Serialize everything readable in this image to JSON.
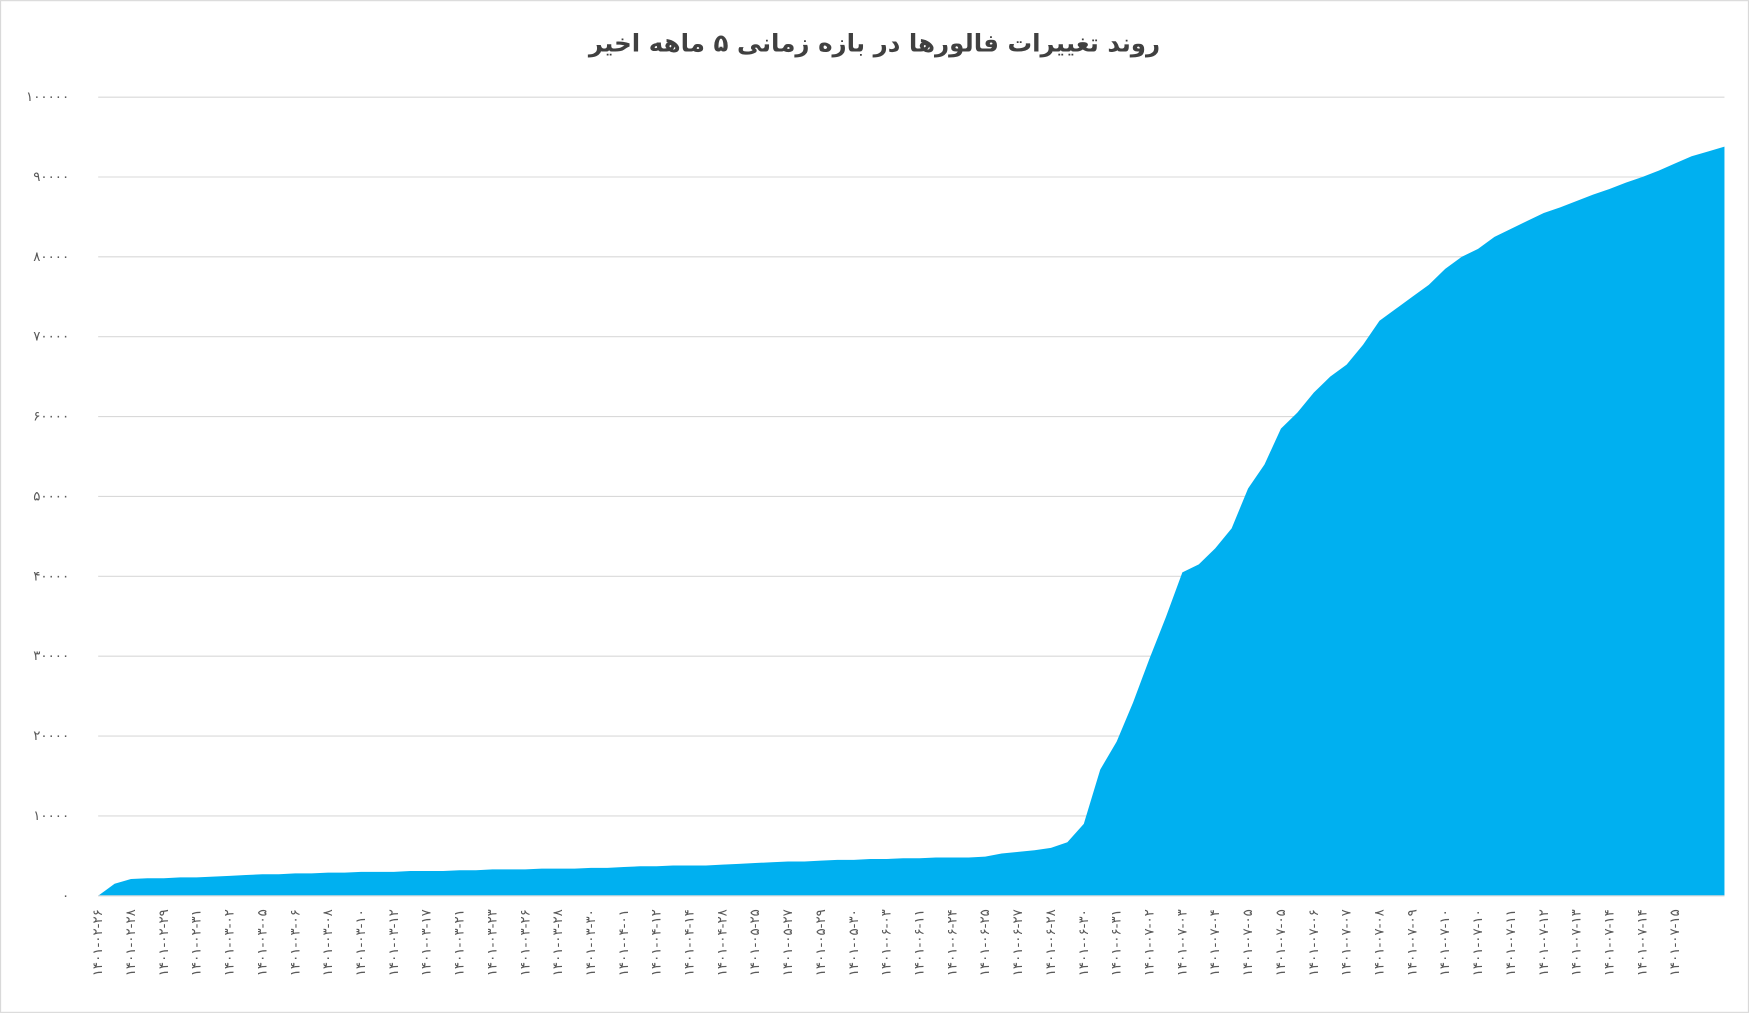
{
  "chart_data": {
    "type": "area",
    "title": "روند تغییرات فالورها در بازه زمانی ۵ ماهه اخیر",
    "categories": [
      "۱۴۰۱-۰۲-۲۶",
      null,
      "۱۴۰۱-۰۲-۲۸",
      null,
      "۱۴۰۱-۰۲-۲۹",
      null,
      "۱۴۰۱-۰۲-۳۱",
      null,
      "۱۴۰۱-۰۳-۰۲",
      null,
      "۱۴۰۱-۰۳-۰۵",
      null,
      "۱۴۰۱-۰۳-۰۶",
      null,
      "۱۴۰۱-۰۳-۰۸",
      null,
      "۱۴۰۱-۰۳-۱۰",
      null,
      "۱۴۰۱-۰۳-۱۲",
      null,
      "۱۴۰۱-۰۳-۱۷",
      null,
      "۱۴۰۱-۰۳-۲۱",
      null,
      "۱۴۰۱-۰۳-۲۳",
      null,
      "۱۴۰۱-۰۳-۲۶",
      null,
      "۱۴۰۱-۰۳-۲۸",
      null,
      "۱۴۰۱-۰۳-۳۰",
      null,
      "۱۴۰۱-۰۴-۰۱",
      null,
      "۱۴۰۱-۰۴-۱۲",
      null,
      "۱۴۰۱-۰۴-۱۴",
      null,
      "۱۴۰۱-۰۴-۲۸",
      null,
      "۱۴۰۱-۰۵-۲۵",
      null,
      "۱۴۰۱-۰۵-۲۷",
      null,
      "۱۴۰۱-۰۵-۲۹",
      null,
      "۱۴۰۱-۰۵-۳۰",
      null,
      "۱۴۰۱-۰۶-۰۳",
      null,
      "۱۴۰۱-۰۶-۱۱",
      null,
      "۱۴۰۱-۰۶-۲۴",
      null,
      "۱۴۰۱-۰۶-۲۵",
      null,
      "۱۴۰۱-۰۶-۲۷",
      null,
      "۱۴۰۱-۰۶-۲۸",
      null,
      "۱۴۰۱-۰۶-۳۰",
      null,
      "۱۴۰۱-۰۶-۳۱",
      null,
      "۱۴۰۱-۰۷-۰۲",
      null,
      "۱۴۰۱-۰۷-۰۳",
      null,
      "۱۴۰۱-۰۷-۰۴",
      null,
      "۱۴۰۱-۰۷-۰۵",
      null,
      "۱۴۰۱-۰۷-۰۵",
      null,
      "۱۴۰۱-۰۷-۰۶",
      null,
      "۱۴۰۱-۰۷-۰۷",
      null,
      "۱۴۰۱-۰۷-۰۸",
      null,
      "۱۴۰۱-۰۷-۰۹",
      null,
      "۱۴۰۱-۰۷-۱۰",
      null,
      "۱۴۰۱-۰۷-۱۰",
      null,
      "۱۴۰۱-۰۷-۱۱",
      null,
      "۱۴۰۱-۰۷-۱۲",
      null,
      "۱۴۰۱-۰۷-۱۳",
      null,
      "۱۴۰۱-۰۷-۱۴",
      null,
      "۱۴۰۱-۰۷-۱۴",
      null,
      "۱۴۰۱-۰۷-۱۵",
      null,
      null,
      null
    ],
    "values": [
      0,
      1500,
      2100,
      2200,
      2200,
      2300,
      2300,
      2400,
      2500,
      2600,
      2700,
      2700,
      2800,
      2800,
      2900,
      2900,
      3000,
      3000,
      3000,
      3100,
      3100,
      3100,
      3200,
      3200,
      3300,
      3300,
      3300,
      3400,
      3400,
      3400,
      3500,
      3500,
      3600,
      3700,
      3700,
      3800,
      3800,
      3800,
      3900,
      4000,
      4100,
      4200,
      4300,
      4300,
      4400,
      4500,
      4500,
      4600,
      4600,
      4700,
      4700,
      4800,
      4800,
      4800,
      4900,
      5300,
      5500,
      5700,
      6000,
      6700,
      9000,
      15800,
      19300,
      24200,
      29700,
      34900,
      40500,
      41500,
      43500,
      46000,
      51000,
      54000,
      58500,
      60500,
      63000,
      65000,
      66500,
      69000,
      72000,
      73500,
      75000,
      76500,
      78500,
      80000,
      81000,
      82500,
      83500,
      84500,
      85500,
      86200,
      87000,
      87800,
      88500,
      89300,
      90000,
      90800,
      91700,
      92600,
      93200,
      93800
    ],
    "color": "#00b0f0",
    "ylim": [
      0,
      100000
    ],
    "yticks": [
      {
        "value": 0,
        "label": "۰"
      },
      {
        "value": 10000,
        "label": "۱۰۰۰۰"
      },
      {
        "value": 20000,
        "label": "۲۰۰۰۰"
      },
      {
        "value": 30000,
        "label": "۳۰۰۰۰"
      },
      {
        "value": 40000,
        "label": "۴۰۰۰۰"
      },
      {
        "value": 50000,
        "label": "۵۰۰۰۰"
      },
      {
        "value": 60000,
        "label": "۶۰۰۰۰"
      },
      {
        "value": 70000,
        "label": "۷۰۰۰۰"
      },
      {
        "value": 80000,
        "label": "۸۰۰۰۰"
      },
      {
        "value": 90000,
        "label": "۹۰۰۰۰"
      },
      {
        "value": 100000,
        "label": "۱۰۰۰۰۰"
      }
    ],
    "grid": true
  }
}
